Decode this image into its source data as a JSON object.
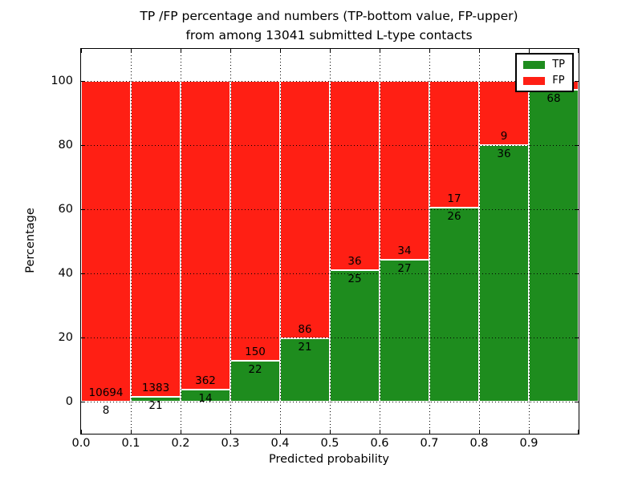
{
  "title": {
    "line1": "TP /FP percentage and numbers (TP-bottom value, FP-upper)",
    "line2": "from among 13041 submitted L-type contacts"
  },
  "axes": {
    "xlabel": "Predicted probability",
    "ylabel": "Percentage",
    "x_ticks": [
      "0.0",
      "0.1",
      "0.2",
      "0.3",
      "0.4",
      "0.5",
      "0.6",
      "0.7",
      "0.8",
      "0.9"
    ],
    "y_ticks": [
      "0",
      "20",
      "40",
      "60",
      "80",
      "100"
    ]
  },
  "chart_data": {
    "type": "bar",
    "stacked": true,
    "title": "TP /FP percentage and numbers (TP-bottom value, FP-upper) from among 13041 submitted L-type contacts",
    "xlabel": "Predicted probability",
    "ylabel": "Percentage",
    "xlim": [
      0.0,
      1.0
    ],
    "ylim": [
      -10,
      110
    ],
    "grid": "dotted, both axes, on top of bars",
    "legend_position": "upper right",
    "total_contacts_in_title": 13041,
    "bin_width": 0.1,
    "series": [
      {
        "name": "TP",
        "color": "#1e8c1e"
      },
      {
        "name": "FP",
        "color": "#ff1f14"
      }
    ],
    "bins": [
      {
        "x0": 0.0,
        "x1": 0.1,
        "tp_count": 8,
        "fp_count": 10694,
        "tp_label": "8",
        "fp_label": "10694",
        "tp_pct": 0.07,
        "fp_pct": 99.93
      },
      {
        "x0": 0.1,
        "x1": 0.2,
        "tp_count": 21,
        "fp_count": 1383,
        "tp_label": "21",
        "fp_label": "1383",
        "tp_pct": 1.5,
        "fp_pct": 98.5
      },
      {
        "x0": 0.2,
        "x1": 0.3,
        "tp_count": 14,
        "fp_count": 362,
        "tp_label": "14",
        "fp_label": "362",
        "tp_pct": 3.72,
        "fp_pct": 96.28
      },
      {
        "x0": 0.3,
        "x1": 0.4,
        "tp_count": 22,
        "fp_count": 150,
        "tp_label": "22",
        "fp_label": "150",
        "tp_pct": 12.79,
        "fp_pct": 87.21
      },
      {
        "x0": 0.4,
        "x1": 0.5,
        "tp_count": 21,
        "fp_count": 86,
        "tp_label": "21",
        "fp_label": "86",
        "tp_pct": 19.63,
        "fp_pct": 80.37
      },
      {
        "x0": 0.5,
        "x1": 0.6,
        "tp_count": 25,
        "fp_count": 36,
        "tp_label": "25",
        "fp_label": "36",
        "tp_pct": 40.98,
        "fp_pct": 59.02
      },
      {
        "x0": 0.6,
        "x1": 0.7,
        "tp_count": 27,
        "fp_count": 34,
        "tp_label": "27",
        "fp_label": "34",
        "tp_pct": 44.26,
        "fp_pct": 55.74
      },
      {
        "x0": 0.7,
        "x1": 0.8,
        "tp_count": 26,
        "fp_count": 17,
        "tp_label": "26",
        "fp_label": "17",
        "tp_pct": 60.47,
        "fp_pct": 39.53
      },
      {
        "x0": 0.8,
        "x1": 0.9,
        "tp_count": 36,
        "fp_count": 9,
        "tp_label": "36",
        "fp_label": "9",
        "tp_pct": 80.0,
        "fp_pct": 20.0
      },
      {
        "x0": 0.9,
        "x1": 1.0,
        "tp_count": 68,
        "fp_count": null,
        "tp_label": "68",
        "fp_label": "",
        "tp_pct": 97.14,
        "fp_pct": 2.86
      }
    ]
  }
}
